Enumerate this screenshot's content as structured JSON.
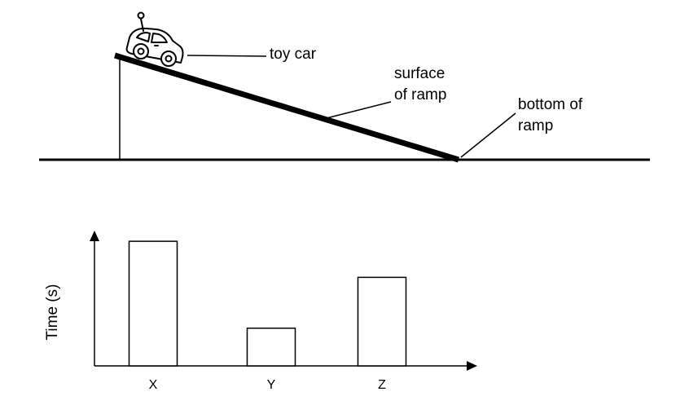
{
  "ramp_diagram": {
    "labels": {
      "toy_car": "toy car",
      "surface_line1": "surface",
      "surface_line2": "of ramp",
      "bottom_line1": "bottom of",
      "bottom_line2": "ramp"
    }
  },
  "chart_data": {
    "type": "bar",
    "title": "",
    "xlabel": "",
    "ylabel": "Time (s)",
    "categories": [
      "X",
      "Y",
      "Z"
    ],
    "values": [
      7.6,
      2.3,
      5.4
    ],
    "ylim": [
      0,
      8.5
    ],
    "grid": false,
    "legend": "none",
    "bar_fill": "#ffffff",
    "bar_stroke": "#000000"
  }
}
